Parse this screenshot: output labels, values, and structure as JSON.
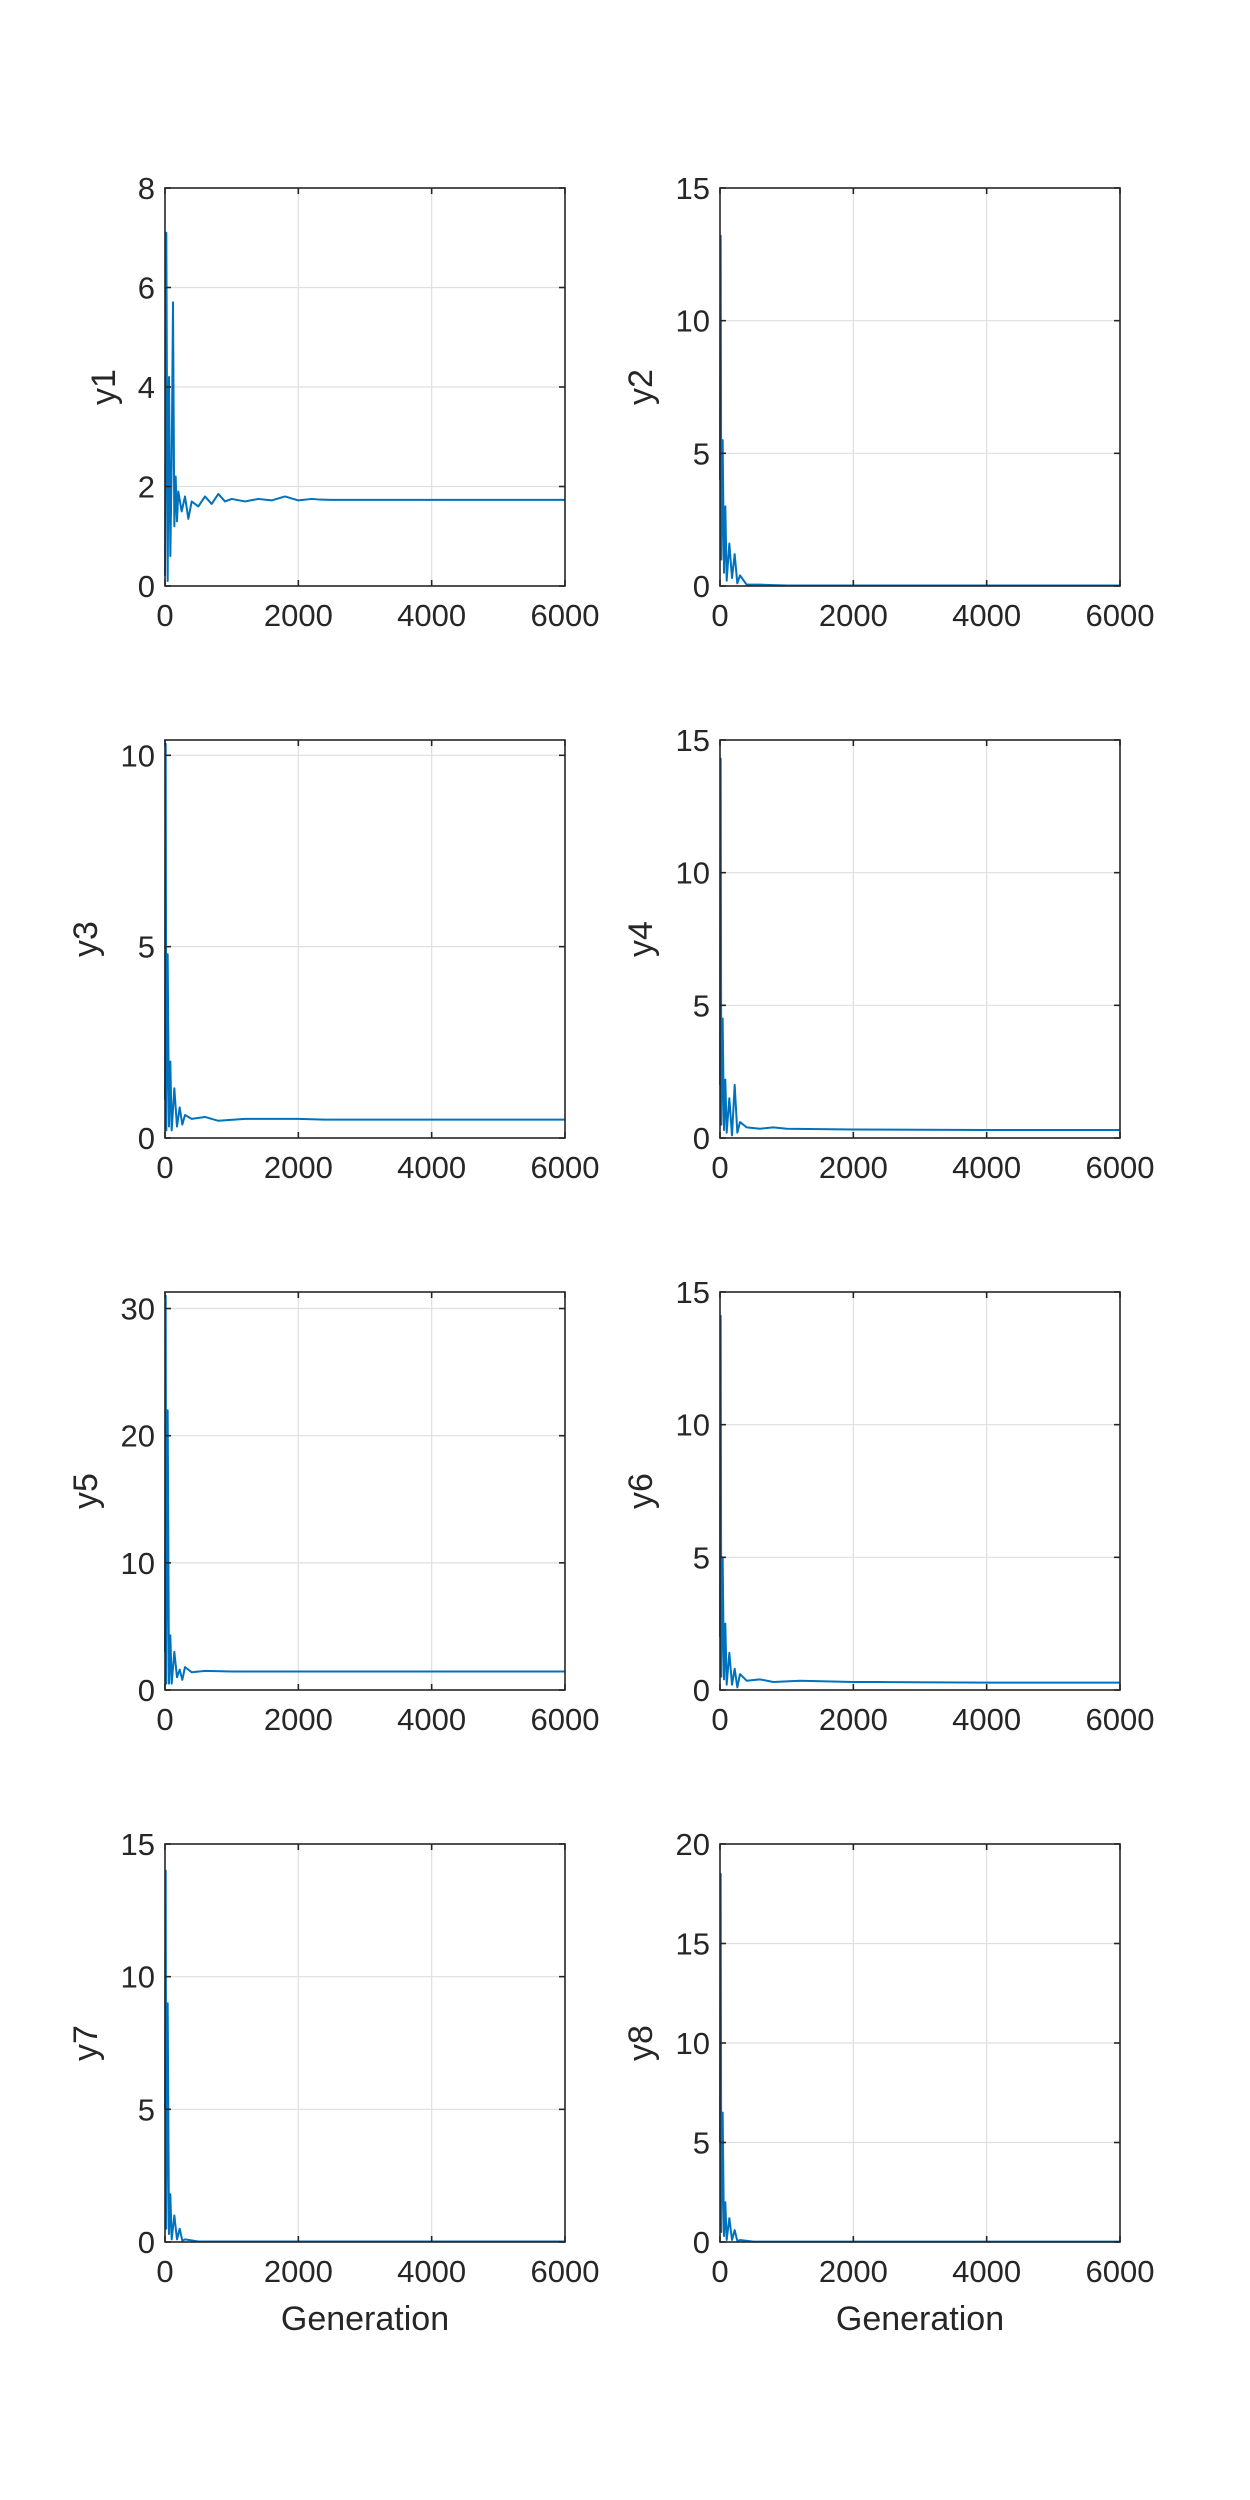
{
  "figure": {
    "layout": "4x2 grid of line plots",
    "line_color": "#0072BD",
    "grid_color": "#DFDFDF",
    "axes_color": "#262626"
  },
  "chart_data": [
    {
      "type": "line",
      "xlabel": "",
      "ylabel": "y1",
      "xlim": [
        0,
        6000
      ],
      "ylim": [
        0,
        8
      ],
      "xticks": [
        0,
        2000,
        4000,
        6000
      ],
      "yticks": [
        0,
        2,
        4,
        6,
        8
      ],
      "grid": true,
      "color": "#0072BD",
      "x": [
        0,
        20,
        40,
        60,
        80,
        100,
        120,
        140,
        160,
        180,
        200,
        250,
        300,
        350,
        400,
        500,
        600,
        700,
        800,
        900,
        1000,
        1200,
        1400,
        1600,
        1800,
        2000,
        2200,
        2300,
        2500,
        3000,
        4000,
        5000,
        6000
      ],
      "y": [
        0.2,
        7.1,
        0.1,
        4.2,
        0.6,
        2.5,
        5.7,
        1.2,
        2.2,
        1.3,
        1.9,
        1.5,
        1.8,
        1.35,
        1.7,
        1.6,
        1.8,
        1.65,
        1.85,
        1.7,
        1.75,
        1.7,
        1.75,
        1.72,
        1.8,
        1.72,
        1.75,
        1.74,
        1.73,
        1.73,
        1.73,
        1.73,
        1.73
      ]
    },
    {
      "type": "line",
      "xlabel": "",
      "ylabel": "y2",
      "xlim": [
        0,
        6000
      ],
      "ylim": [
        0,
        15
      ],
      "xticks": [
        0,
        2000,
        4000,
        6000
      ],
      "yticks": [
        0,
        5,
        10,
        15
      ],
      "grid": true,
      "color": "#0072BD",
      "x": [
        0,
        10,
        20,
        40,
        60,
        80,
        100,
        140,
        180,
        220,
        260,
        300,
        400,
        600,
        1000,
        2000,
        4000,
        6000
      ],
      "y": [
        4.0,
        13.2,
        1.0,
        5.5,
        0.5,
        3.0,
        0.2,
        1.6,
        0.3,
        1.2,
        0.1,
        0.4,
        0.05,
        0.05,
        0.02,
        0.02,
        0.02,
        0.02
      ]
    },
    {
      "type": "line",
      "xlabel": "",
      "ylabel": "y3",
      "xlim": [
        0,
        6000
      ],
      "ylim": [
        0,
        10.4
      ],
      "xticks": [
        0,
        2000,
        4000,
        6000
      ],
      "yticks": [
        0,
        5,
        10
      ],
      "grid": true,
      "color": "#0072BD",
      "x": [
        0,
        10,
        20,
        40,
        60,
        80,
        100,
        140,
        180,
        220,
        260,
        300,
        400,
        600,
        800,
        1200,
        2000,
        2400,
        4000,
        6000
      ],
      "y": [
        1.0,
        10.3,
        0.2,
        4.8,
        0.3,
        2.0,
        0.2,
        1.3,
        0.3,
        0.8,
        0.35,
        0.6,
        0.5,
        0.55,
        0.45,
        0.5,
        0.5,
        0.48,
        0.48,
        0.48
      ]
    },
    {
      "type": "line",
      "xlabel": "",
      "ylabel": "y4",
      "xlim": [
        0,
        6000
      ],
      "ylim": [
        0,
        15
      ],
      "xticks": [
        0,
        2000,
        4000,
        6000
      ],
      "yticks": [
        0,
        5,
        10,
        15
      ],
      "grid": true,
      "color": "#0072BD",
      "x": [
        0,
        10,
        20,
        40,
        60,
        80,
        100,
        140,
        180,
        220,
        260,
        300,
        400,
        600,
        800,
        1000,
        2000,
        4000,
        6000
      ],
      "y": [
        2.0,
        14.3,
        0.5,
        4.5,
        0.3,
        2.2,
        0.2,
        1.5,
        0.1,
        2.0,
        0.2,
        0.6,
        0.4,
        0.35,
        0.4,
        0.35,
        0.32,
        0.3,
        0.3
      ]
    },
    {
      "type": "line",
      "xlabel": "",
      "ylabel": "y5",
      "xlim": [
        0,
        6000
      ],
      "ylim": [
        0,
        31.3
      ],
      "xticks": [
        0,
        2000,
        4000,
        6000
      ],
      "yticks": [
        0,
        10,
        20,
        30
      ],
      "grid": true,
      "color": "#0072BD",
      "x": [
        0,
        10,
        20,
        40,
        60,
        80,
        100,
        140,
        180,
        220,
        260,
        300,
        400,
        600,
        1000,
        2000,
        4000,
        6000
      ],
      "y": [
        3.0,
        31.0,
        0.5,
        22.0,
        0.5,
        4.3,
        0.5,
        3.0,
        1.0,
        1.6,
        0.8,
        1.8,
        1.4,
        1.5,
        1.45,
        1.45,
        1.45,
        1.45
      ]
    },
    {
      "type": "line",
      "xlabel": "",
      "ylabel": "y6",
      "xlim": [
        0,
        6000
      ],
      "ylim": [
        0,
        15
      ],
      "xticks": [
        0,
        2000,
        4000,
        6000
      ],
      "yticks": [
        0,
        5,
        10,
        15
      ],
      "grid": true,
      "color": "#0072BD",
      "x": [
        0,
        10,
        20,
        40,
        60,
        80,
        100,
        140,
        180,
        220,
        260,
        300,
        400,
        600,
        800,
        1200,
        2000,
        2400,
        4000,
        6000
      ],
      "y": [
        2.0,
        14.1,
        0.5,
        5.0,
        0.4,
        2.5,
        0.2,
        1.4,
        0.2,
        0.8,
        0.1,
        0.6,
        0.35,
        0.4,
        0.3,
        0.35,
        0.3,
        0.3,
        0.28,
        0.28
      ]
    },
    {
      "type": "line",
      "xlabel": "Generation",
      "ylabel": "y7",
      "xlim": [
        0,
        6000
      ],
      "ylim": [
        0,
        15
      ],
      "xticks": [
        0,
        2000,
        4000,
        6000
      ],
      "yticks": [
        0,
        5,
        10,
        15
      ],
      "grid": true,
      "color": "#0072BD",
      "x": [
        0,
        10,
        20,
        40,
        60,
        80,
        100,
        140,
        180,
        220,
        260,
        300,
        500,
        1000,
        2000,
        4000,
        6000
      ],
      "y": [
        5.0,
        14.0,
        0.5,
        9.0,
        0.3,
        1.8,
        0.1,
        1.0,
        0.1,
        0.5,
        0.05,
        0.1,
        0.02,
        0.02,
        0.02,
        0.02,
        0.02
      ]
    },
    {
      "type": "line",
      "xlabel": "Generation",
      "ylabel": "y8",
      "xlim": [
        0,
        6000
      ],
      "ylim": [
        0,
        20
      ],
      "xticks": [
        0,
        2000,
        4000,
        6000
      ],
      "yticks": [
        0,
        5,
        10,
        15,
        20
      ],
      "grid": true,
      "color": "#0072BD",
      "x": [
        0,
        10,
        20,
        40,
        60,
        80,
        100,
        140,
        180,
        220,
        260,
        300,
        500,
        1000,
        2000,
        4000,
        6000
      ],
      "y": [
        5.0,
        18.5,
        0.5,
        6.5,
        0.3,
        2.0,
        0.1,
        1.2,
        0.1,
        0.6,
        0.05,
        0.1,
        0.02,
        0.02,
        0.02,
        0.02,
        0.02
      ]
    }
  ]
}
